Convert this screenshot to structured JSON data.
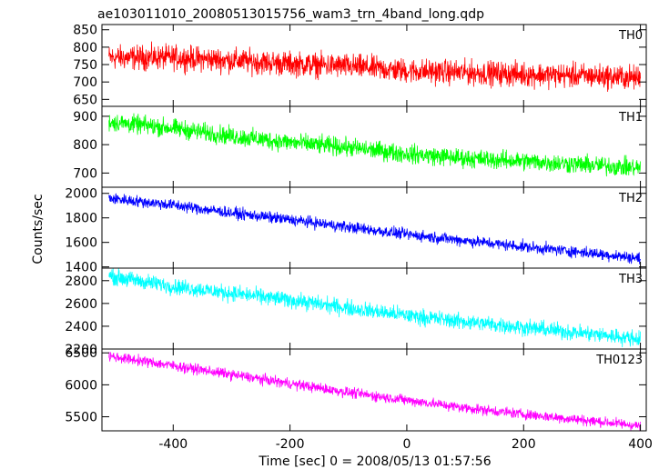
{
  "chart_data": {
    "type": "line",
    "title": "ae103011010_20080513015756_wam3_trn_4band_long.qdp",
    "xlabel": "Time [sec] 0 = 2008/05/13 01:57:56",
    "ylabel": "Counts/sec",
    "xlim": [
      -522,
      410
    ],
    "x_ticks": [
      "-400",
      "-200",
      "0",
      "200",
      "400"
    ],
    "x_tick_values": [
      -400,
      -200,
      0,
      200,
      400
    ],
    "x_range_data": [
      -510,
      400
    ],
    "panels": [
      {
        "name": "TH0",
        "color": "#ff0000",
        "ylim": [
          630,
          865
        ],
        "y_ticks": [
          "850",
          "800",
          "750",
          "700",
          "650"
        ],
        "y_tick_values": [
          850,
          800,
          750,
          700,
          650
        ],
        "x": [
          -510,
          -400,
          -300,
          -200,
          -100,
          0,
          100,
          200,
          300,
          400
        ],
        "values": [
          770,
          770,
          762,
          752,
          745,
          732,
          727,
          722,
          718,
          712
        ],
        "noise": 30
      },
      {
        "name": "TH1",
        "color": "#00ff00",
        "ylim": [
          650,
          935
        ],
        "y_ticks": [
          "900",
          "800",
          "700"
        ],
        "y_tick_values": [
          900,
          800,
          700
        ],
        "x": [
          -510,
          -400,
          -300,
          -200,
          -100,
          0,
          100,
          200,
          300,
          400
        ],
        "values": [
          880,
          858,
          830,
          808,
          790,
          768,
          752,
          742,
          730,
          718
        ],
        "noise": 28
      },
      {
        "name": "TH2",
        "color": "#0000ff",
        "ylim": [
          1390,
          2050
        ],
        "y_ticks": [
          "2000",
          "1800",
          "1600",
          "1400"
        ],
        "y_tick_values": [
          2000,
          1800,
          1600,
          1400
        ],
        "x": [
          -510,
          -400,
          -300,
          -200,
          -100,
          0,
          100,
          200,
          300,
          400
        ],
        "values": [
          1960,
          1905,
          1840,
          1785,
          1725,
          1665,
          1615,
          1565,
          1520,
          1470
        ],
        "noise": 40
      },
      {
        "name": "TH3",
        "color": "#00ffff",
        "ylim": [
          2200,
          2910
        ],
        "y_ticks": [
          "2800",
          "2600",
          "2400",
          "2200"
        ],
        "y_tick_values": [
          2800,
          2600,
          2400,
          2200
        ],
        "x": [
          -510,
          -400,
          -300,
          -200,
          -100,
          0,
          100,
          200,
          300,
          400
        ],
        "values": [
          2840,
          2750,
          2690,
          2630,
          2560,
          2495,
          2440,
          2390,
          2340,
          2290
        ],
        "noise": 60
      },
      {
        "name": "TH0123",
        "color": "#ff00ff",
        "ylim": [
          5280,
          6560
        ],
        "y_ticks": [
          "6500",
          "6000",
          "5500"
        ],
        "y_tick_values": [
          6500,
          6000,
          5500
        ],
        "x": [
          -510,
          -400,
          -300,
          -200,
          -100,
          0,
          100,
          200,
          300,
          400
        ],
        "values": [
          6450,
          6300,
          6160,
          6020,
          5880,
          5760,
          5640,
          5540,
          5450,
          5360
        ],
        "noise": 70
      }
    ]
  }
}
